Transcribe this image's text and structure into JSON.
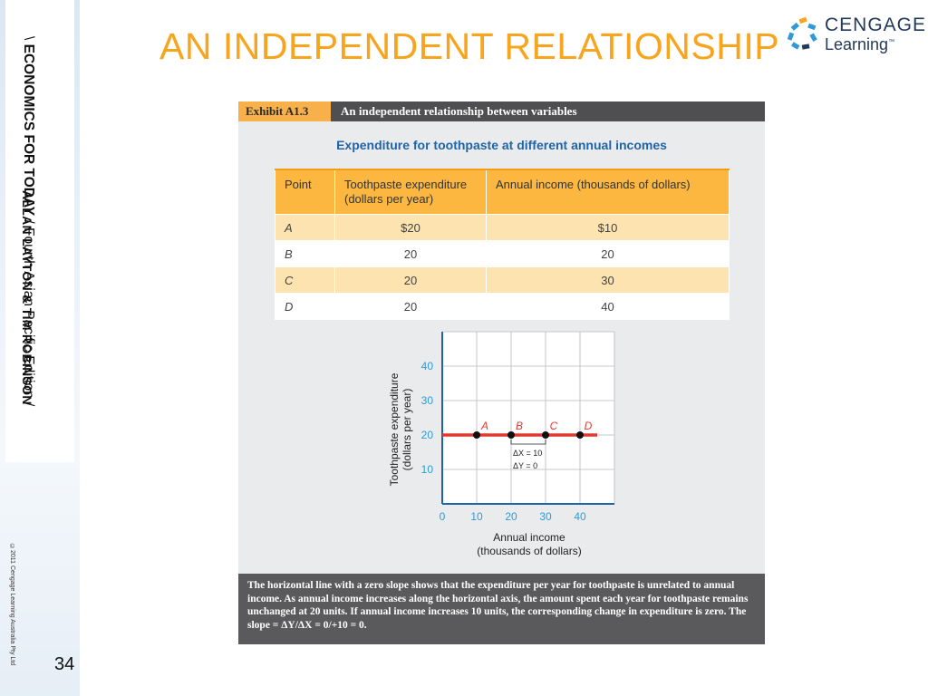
{
  "sidebar": {
    "book_prefix": "\\ ",
    "book_title": "ECONOMICS FOR TODAY",
    "book_edition": " / Fourth Asian Pacific Edition /",
    "authors": "ALLAN LAYTON & TIM ROBINSON",
    "copyright": "©2011 Cengage Learning Australia Pty Ltd",
    "page_number": "34"
  },
  "slide_title": "AN INDEPENDENT RELATIONSHIP",
  "logo": {
    "line1": "CENGAGE",
    "line2": "Learning",
    "tm": "™"
  },
  "exhibit": {
    "number": "Exhibit A1.3",
    "title": "An independent relationship between variables",
    "table_title": "Expenditure for toothpaste at different annual incomes",
    "columns": [
      "Point",
      "Toothpaste expenditure (dollars per year)",
      "Annual income (thousands of dollars)"
    ],
    "rows": [
      {
        "point": "A",
        "expenditure": "$20",
        "income": "$10"
      },
      {
        "point": "B",
        "expenditure": "20",
        "income": "20"
      },
      {
        "point": "C",
        "expenditure": "20",
        "income": "30"
      },
      {
        "point": "D",
        "expenditure": "20",
        "income": "40"
      }
    ],
    "caption": "The horizontal line with a zero slope shows that the expenditure per year for toothpaste is unrelated to annual income. As annual income increases along the horizontal axis, the amount spent each year for toothpaste remains unchanged at 20 units. If annual income increases 10 units, the corresponding change in expenditure is zero. The slope = ΔY/ΔX = 0/+10 = 0."
  },
  "chart_data": {
    "type": "line",
    "xlabel_line1": "Annual income",
    "xlabel_line2": "(thousands of dollars)",
    "ylabel_line1": "Toothpaste expenditure",
    "ylabel_line2": "(dollars per year)",
    "xlim": [
      0,
      50
    ],
    "ylim": [
      0,
      50
    ],
    "x_ticks": [
      0,
      10,
      20,
      30,
      40
    ],
    "y_ticks": [
      10,
      20,
      30,
      40
    ],
    "grid": true,
    "line": {
      "y": 20,
      "x_start": 0,
      "x_end": 45,
      "color": "#e03a2e"
    },
    "points": [
      {
        "label": "A",
        "x": 10,
        "y": 20
      },
      {
        "label": "B",
        "x": 20,
        "y": 20
      },
      {
        "label": "C",
        "x": 30,
        "y": 20
      },
      {
        "label": "D",
        "x": 40,
        "y": 20
      }
    ],
    "annotation": {
      "dx": "ΔX = 10",
      "dy": "ΔY = 0"
    },
    "colors": {
      "tick_labels": "#2e9bd6",
      "point_labels": "#e03a2e",
      "axis": "#1f64a8"
    }
  }
}
